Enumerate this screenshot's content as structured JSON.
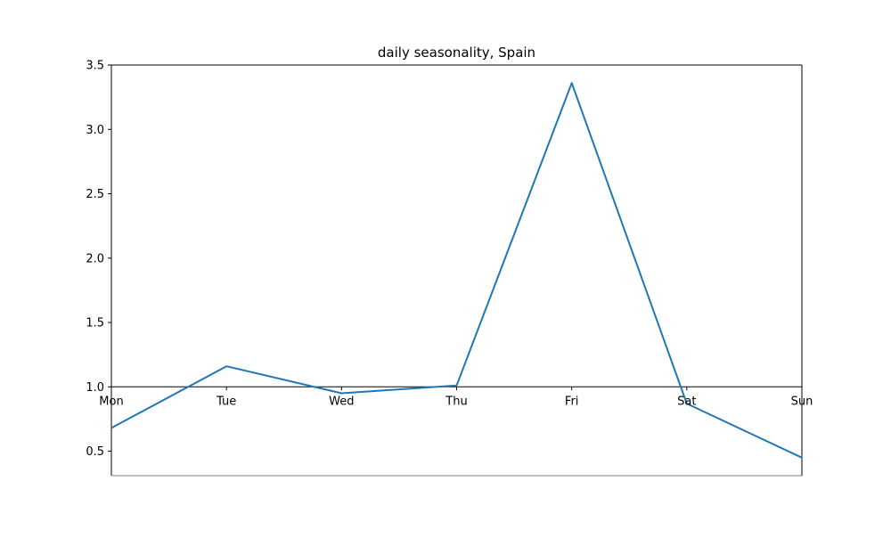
{
  "chart_data": {
    "type": "line",
    "title": "daily seasonality, Spain",
    "xlabel": "",
    "ylabel": "",
    "categories": [
      "Mon",
      "Tue",
      "Wed",
      "Thu",
      "Fri",
      "Sat",
      "Sun"
    ],
    "series": [
      {
        "values": [
          0.68,
          1.16,
          0.95,
          1.01,
          3.36,
          0.87,
          0.45
        ]
      }
    ],
    "ylim": [
      0.31,
      3.5
    ],
    "yticks": [
      0.5,
      1.0,
      1.5,
      2.0,
      2.5,
      3.0,
      3.5
    ],
    "ytick_labels": [
      "0.5",
      "1.0",
      "1.5",
      "2.0",
      "2.5",
      "3.0",
      "3.5"
    ],
    "x_axis_crosses_y_at": 1.0,
    "grid": false,
    "legend": false,
    "colors": {
      "line": "#1f77b4",
      "axis": "#000000",
      "bottom_spine": "#808080"
    }
  }
}
